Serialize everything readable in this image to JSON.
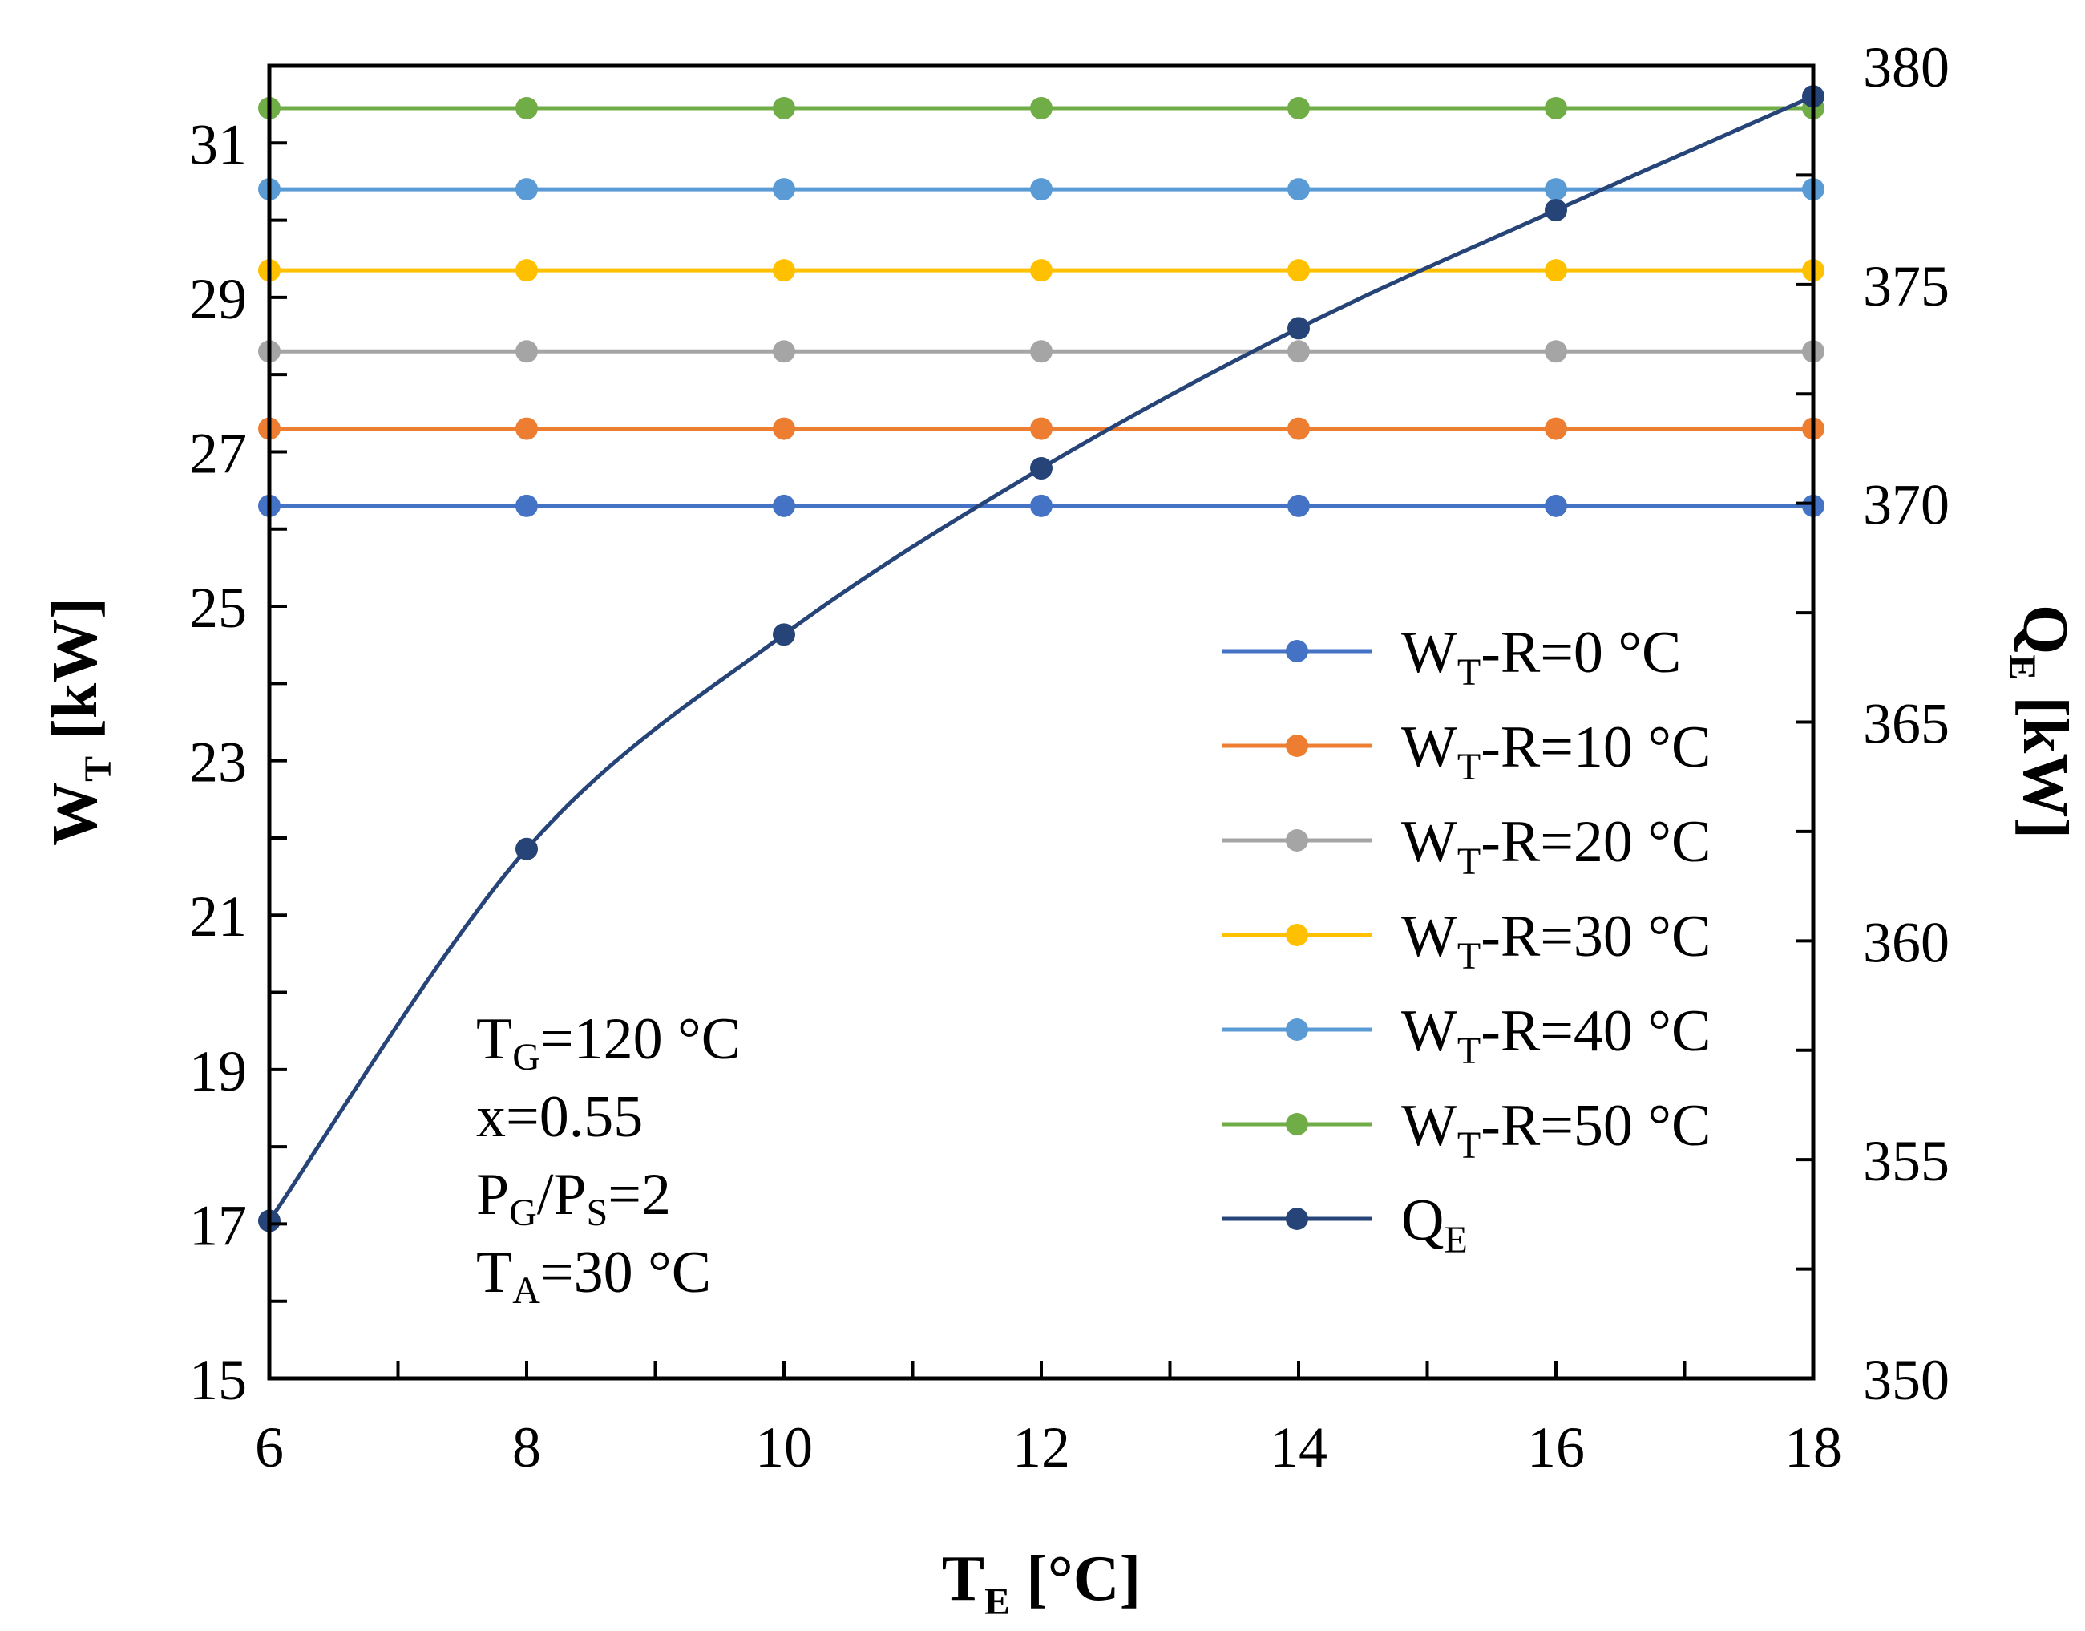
{
  "chart_data": {
    "type": "line",
    "title": "",
    "xlabel": {
      "main": "T",
      "sub": "E",
      "unit": " [°C]"
    },
    "ylabel": {
      "main": "W",
      "sub": "T",
      "unit": " [kW]"
    },
    "y2label": {
      "main": "Q",
      "sub": "E",
      "unit": " [kW]"
    },
    "x": [
      6,
      8,
      10,
      12,
      14,
      16,
      18
    ],
    "xlim": [
      6,
      18
    ],
    "ylim": [
      15,
      32
    ],
    "y2lim": [
      350,
      380
    ],
    "x_ticks": [
      "6",
      "8",
      "10",
      "12",
      "14",
      "16",
      "18"
    ],
    "y_ticks": [
      "15",
      "17",
      "19",
      "21",
      "23",
      "25",
      "27",
      "29",
      "31"
    ],
    "y2_ticks": [
      "350",
      "355",
      "360",
      "365",
      "370",
      "375",
      "380"
    ],
    "grid": false,
    "legend_position": "right-middle",
    "series": [
      {
        "name": "WT-R=0 °C",
        "label_main": "W",
        "label_sub": "T",
        "label_rest": "-R=0 °C",
        "axis": "left",
        "color": "#4472C4",
        "values": [
          26.3,
          26.3,
          26.3,
          26.3,
          26.3,
          26.3,
          26.3
        ]
      },
      {
        "name": "WT-R=10 °C",
        "label_main": "W",
        "label_sub": "T",
        "label_rest": "-R=10 °C",
        "axis": "left",
        "color": "#ED7D31",
        "values": [
          27.3,
          27.3,
          27.3,
          27.3,
          27.3,
          27.3,
          27.3
        ]
      },
      {
        "name": "WT-R=20 °C",
        "label_main": "W",
        "label_sub": "T",
        "label_rest": "-R=20 °C",
        "axis": "left",
        "color": "#A5A5A5",
        "values": [
          28.3,
          28.3,
          28.3,
          28.3,
          28.3,
          28.3,
          28.3
        ]
      },
      {
        "name": "WT-R=30 °C",
        "label_main": "W",
        "label_sub": "T",
        "label_rest": "-R=30 °C",
        "axis": "left",
        "color": "#FFC000",
        "values": [
          29.35,
          29.35,
          29.35,
          29.35,
          29.35,
          29.35,
          29.35
        ]
      },
      {
        "name": "WT-R=40 °C",
        "label_main": "W",
        "label_sub": "T",
        "label_rest": "-R=40 °C",
        "axis": "left",
        "color": "#5B9BD5",
        "values": [
          30.4,
          30.4,
          30.4,
          30.4,
          30.4,
          30.4,
          30.4
        ]
      },
      {
        "name": "WT-R=50 °C",
        "label_main": "W",
        "label_sub": "T",
        "label_rest": "-R=50 °C",
        "axis": "left",
        "color": "#70AD47",
        "values": [
          31.45,
          31.45,
          31.45,
          31.45,
          31.45,
          31.45,
          31.45
        ]
      },
      {
        "name": "QE",
        "label_main": "Q",
        "label_sub": "E",
        "label_rest": "",
        "axis": "right",
        "color": "#264478",
        "smooth": true,
        "values": [
          353.6,
          362.1,
          367.0,
          370.8,
          374.0,
          376.7,
          379.3
        ]
      }
    ],
    "annotations": [
      {
        "main": "T",
        "sub": "G",
        "rest": "=120 °C"
      },
      {
        "main": "x=0.55",
        "sub": "",
        "rest": ""
      },
      {
        "main": "P",
        "sub": "G",
        "rest": "/P",
        "sub2": "S",
        "rest2": "=2"
      },
      {
        "main": "T",
        "sub": "A",
        "rest": "=30 °C"
      }
    ]
  }
}
